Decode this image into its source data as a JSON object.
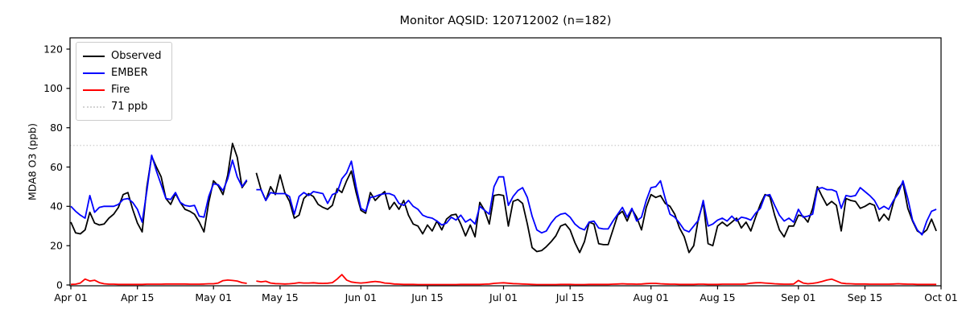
{
  "title": "Monitor AQSID: 120712002 (n=182)",
  "y_axis": {
    "label": "MDA8 O3 (ppb)",
    "ticks": [
      0,
      20,
      40,
      60,
      80,
      100,
      120
    ]
  },
  "x_axis": {
    "tick_labels": [
      "Apr 01",
      "Apr 15",
      "May 01",
      "May 15",
      "Jun 01",
      "Jun 15",
      "Jul 01",
      "Jul 15",
      "Aug 01",
      "Aug 15",
      "Sep 01",
      "Sep 15",
      "Oct 01"
    ],
    "tick_day_index": [
      0,
      14,
      30,
      44,
      61,
      75,
      91,
      105,
      122,
      136,
      153,
      167,
      183
    ]
  },
  "legend": {
    "items": [
      {
        "label": "Observed",
        "color": "#000000",
        "style": "solid"
      },
      {
        "label": "EMBER",
        "color": "#0000ff",
        "style": "solid"
      },
      {
        "label": "Fire",
        "color": "#ff0000",
        "style": "solid"
      },
      {
        "label": "71 ppb",
        "color": "#d3d3d3",
        "style": "dotted"
      }
    ]
  },
  "chart_data": {
    "type": "line",
    "title": "Monitor AQSID: 120712002 (n=182)",
    "xlabel": "",
    "ylabel": "MDA8 O3 (ppb)",
    "start_date": "Apr 01",
    "end_date": "Sep 30",
    "x_days_total": 183,
    "ylim": [
      0,
      125
    ],
    "grid": false,
    "legend_position": "upper left",
    "x_tick_labels": [
      "Apr 01",
      "Apr 15",
      "May 01",
      "May 15",
      "Jun 01",
      "Jun 15",
      "Jul 01",
      "Jul 15",
      "Aug 01",
      "Aug 15",
      "Sep 01",
      "Sep 15",
      "Oct 01"
    ],
    "x_tick_day_index": [
      0,
      14,
      30,
      44,
      61,
      75,
      91,
      105,
      122,
      136,
      153,
      167,
      183
    ],
    "reference_line": {
      "label": "71 ppb",
      "value": 71,
      "color": "#d3d3d3",
      "style": "dotted"
    },
    "series": [
      {
        "name": "Observed",
        "color": "#000000",
        "style": "solid",
        "values": [
          32,
          26.5,
          26,
          28,
          37,
          31.5,
          30.5,
          31,
          34,
          36,
          39.5,
          46,
          47,
          38.5,
          31.5,
          27,
          50,
          65.5,
          60,
          55,
          44,
          41,
          46.5,
          42,
          38.5,
          37.5,
          36,
          32,
          27,
          42,
          53,
          50.5,
          46,
          56,
          72,
          65,
          49.5,
          53,
          null,
          57,
          48.5,
          43,
          50,
          46,
          56,
          47,
          42.5,
          34,
          35.5,
          44,
          46.5,
          45,
          41,
          39.5,
          38.5,
          40.5,
          49,
          47,
          53,
          58,
          47,
          38,
          36.5,
          47,
          43,
          45.5,
          47.5,
          38.5,
          42,
          38.5,
          43,
          35.5,
          31,
          30,
          26,
          30.5,
          27.5,
          32.5,
          28,
          33.5,
          35.5,
          36,
          31,
          25,
          30.5,
          24.5,
          42,
          38,
          31,
          45.5,
          46,
          45.5,
          30,
          42.5,
          43.5,
          41.5,
          31,
          19,
          17,
          17.5,
          19.5,
          22,
          25,
          30,
          31,
          28,
          21.5,
          16.5,
          22,
          32,
          31,
          21,
          20.5,
          20.5,
          28,
          35.5,
          37.5,
          32.5,
          38.5,
          34.5,
          28,
          39.5,
          46,
          44.5,
          45.5,
          41.5,
          40,
          36,
          29,
          24.5,
          16.5,
          20,
          34,
          42,
          21,
          20,
          30,
          32,
          30,
          32,
          34,
          29,
          32,
          27.5,
          34.5,
          41,
          46,
          45,
          35.5,
          28,
          24.5,
          30,
          30,
          35.5,
          35,
          32,
          39,
          50,
          45,
          40.5,
          42.5,
          40.5,
          27.5,
          44,
          43,
          42.5,
          39,
          40,
          41.5,
          40.5,
          32.5,
          36,
          33,
          42,
          49,
          52,
          39,
          32.5,
          27.5,
          26,
          28,
          33.5,
          27.5
        ]
      },
      {
        "name": "EMBER",
        "color": "#0000ff",
        "style": "solid",
        "values": [
          40,
          37.5,
          35.5,
          34,
          45.5,
          37,
          39.5,
          40,
          40,
          40,
          41,
          43.5,
          44,
          42,
          38.5,
          32,
          48,
          66,
          58,
          51,
          44,
          43.5,
          47,
          42,
          40.5,
          40,
          40.5,
          35,
          34.5,
          45,
          51.5,
          51,
          48,
          54,
          63.5,
          55,
          50,
          53.5,
          null,
          48.5,
          48.5,
          43,
          47,
          46.5,
          46.5,
          46.5,
          45,
          36,
          45,
          47,
          45.5,
          47.5,
          47,
          46.5,
          41.5,
          46,
          47,
          54,
          57,
          63,
          50,
          39,
          37.5,
          44.5,
          45,
          46,
          46.5,
          46.5,
          45.5,
          41.5,
          40.5,
          43,
          40,
          38.5,
          35.5,
          34.5,
          34,
          32.5,
          30.5,
          31.5,
          34.5,
          33,
          35.5,
          32,
          33.5,
          31,
          40,
          38,
          36,
          50,
          55,
          55,
          40.5,
          45,
          48,
          49.5,
          44.5,
          35,
          28,
          26.5,
          27.5,
          31.5,
          34.5,
          36,
          36.5,
          34.5,
          31,
          29,
          28,
          32,
          32.5,
          29,
          28.5,
          28.5,
          32.5,
          36,
          39.5,
          34.5,
          39,
          32.5,
          34.5,
          43,
          49.5,
          50,
          53,
          44,
          36,
          34.5,
          31.5,
          28,
          27,
          30,
          33,
          43,
          30,
          31,
          33,
          34,
          32.5,
          35,
          32.5,
          34.5,
          34,
          33,
          36.5,
          39,
          45.5,
          46,
          40.5,
          35.5,
          32.5,
          34,
          32,
          38.5,
          34.5,
          35,
          36,
          49,
          49.5,
          48.5,
          48.5,
          47.5,
          39,
          45.5,
          45,
          45.5,
          49.5,
          47.5,
          45.5,
          43,
          38.5,
          40,
          38.5,
          43,
          46.5,
          53,
          44,
          33,
          28,
          25.5,
          32.5,
          37.5,
          38.5
        ]
      },
      {
        "name": "Fire",
        "color": "#ff0000",
        "style": "solid",
        "values": [
          0.3,
          0.4,
          1,
          3,
          2,
          2.4,
          1.2,
          0.6,
          0.4,
          0.4,
          0.3,
          0.3,
          0.3,
          0.3,
          0.3,
          0.3,
          0.4,
          0.4,
          0.4,
          0.4,
          0.5,
          0.5,
          0.5,
          0.5,
          0.5,
          0.4,
          0.4,
          0.4,
          0.5,
          0.6,
          0.6,
          1,
          2.2,
          2.5,
          2.3,
          2,
          1.2,
          0.8,
          null,
          2,
          1.6,
          1.9,
          1,
          0.7,
          0.6,
          0.5,
          0.6,
          0.8,
          1.2,
          1,
          1,
          1.1,
          0.9,
          0.8,
          0.9,
          1.2,
          3,
          5.3,
          2.5,
          1.5,
          1.2,
          1,
          1.2,
          1.5,
          1.8,
          1.5,
          1,
          0.8,
          0.5,
          0.4,
          0.3,
          0.3,
          0.3,
          0.2,
          0.2,
          0.2,
          0.2,
          0.2,
          0.2,
          0.2,
          0.2,
          0.2,
          0.3,
          0.3,
          0.3,
          0.3,
          0.3,
          0.4,
          0.5,
          0.8,
          1,
          1.1,
          0.9,
          0.7,
          0.6,
          0.5,
          0.4,
          0.3,
          0.2,
          0.2,
          0.2,
          0.2,
          0.2,
          0.3,
          0.3,
          0.3,
          0.2,
          0.2,
          0.2,
          0.3,
          0.3,
          0.3,
          0.3,
          0.3,
          0.4,
          0.5,
          0.6,
          0.5,
          0.5,
          0.4,
          0.5,
          0.7,
          0.8,
          0.8,
          0.6,
          0.5,
          0.4,
          0.4,
          0.3,
          0.3,
          0.3,
          0.3,
          0.4,
          0.4,
          0.3,
          0.3,
          0.3,
          0.4,
          0.4,
          0.4,
          0.4,
          0.4,
          0.5,
          0.9,
          1.1,
          1.2,
          1,
          0.8,
          0.6,
          0.5,
          0.4,
          0.4,
          0.5,
          2.3,
          1,
          0.6,
          0.8,
          1.2,
          1.8,
          2.5,
          3,
          2,
          1,
          0.7,
          0.6,
          0.5,
          0.5,
          0.5,
          0.4,
          0.4,
          0.4,
          0.4,
          0.4,
          0.5,
          0.6,
          0.5,
          0.4,
          0.4,
          0.3,
          0.3,
          0.3,
          0.3,
          0.3
        ]
      }
    ]
  }
}
